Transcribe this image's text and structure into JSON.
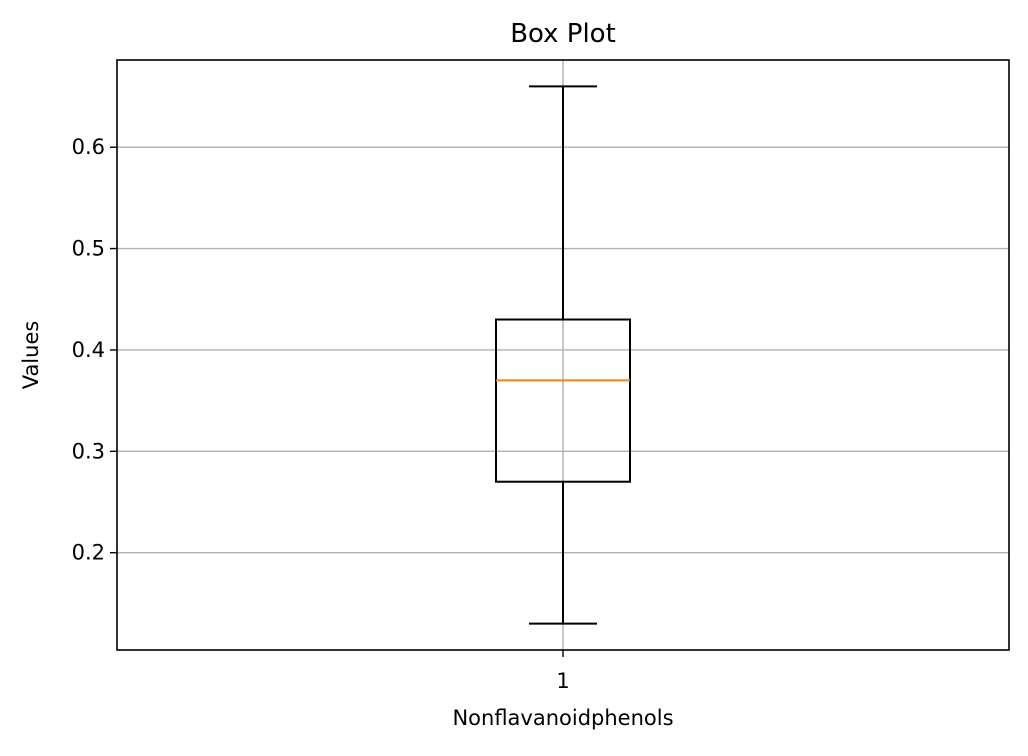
{
  "chart_data": {
    "type": "box",
    "title": "Box Plot",
    "xlabel": "Nonflavanoidphenols",
    "ylabel": "Values",
    "categories": [
      "1"
    ],
    "boxes": [
      {
        "whisker_low": 0.13,
        "q1": 0.27,
        "median": 0.37,
        "q3": 0.43,
        "whisker_high": 0.66
      }
    ],
    "ylim": [
      0.104,
      0.686
    ],
    "yticks": [
      0.2,
      0.3,
      0.4,
      0.5,
      0.6
    ],
    "ytick_labels": [
      "0.2",
      "0.3",
      "0.4",
      "0.5",
      "0.6"
    ],
    "grid": true,
    "colors": {
      "box": "#000000",
      "median": "#ff7f0e",
      "grid": "#b0b0b0"
    }
  }
}
